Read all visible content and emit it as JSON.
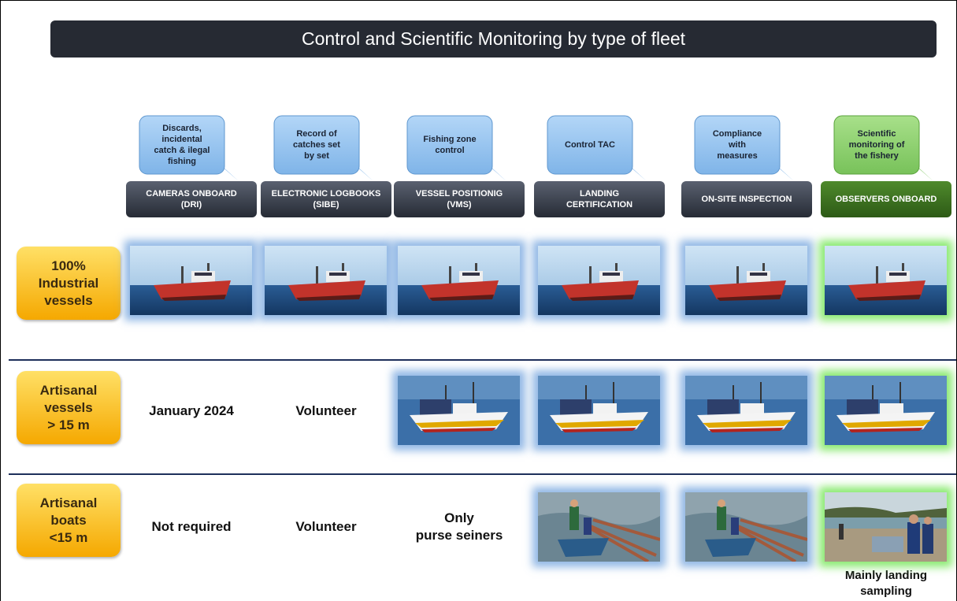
{
  "title": "Control and Scientific Monitoring by type of fleet",
  "columns": [
    {
      "callout": [
        "Discards,",
        "incidental",
        "catch & ilegal",
        "fishing"
      ],
      "header": [
        "CAMERAS ONBOARD",
        "(DRI)"
      ]
    },
    {
      "callout": [
        "Record of",
        "catches set",
        "by set"
      ],
      "header": [
        "ELECTRONIC LOGBOOKS",
        "(SIBE)"
      ]
    },
    {
      "callout": [
        "Fishing zone",
        "control"
      ],
      "header": [
        "VESSEL POSITIONIG",
        "(VMS)"
      ]
    },
    {
      "callout": [
        "Control TAC"
      ],
      "header": [
        "LANDING",
        "CERTIFICATION"
      ]
    },
    {
      "callout": [
        "Compliance",
        "with",
        "measures"
      ],
      "header": [
        "ON-SITE INSPECTION"
      ]
    },
    {
      "callout": [
        "Scientific",
        "monitoring of",
        "the fishery"
      ],
      "header": [
        "OBSERVERS ONBOARD"
      ]
    }
  ],
  "rows": [
    {
      "label": [
        "100%",
        "Industrial",
        "vessels"
      ]
    },
    {
      "label": [
        "Artisanal",
        "vessels",
        "> 15 m"
      ],
      "notes": [
        [
          "January 2024"
        ],
        [
          "Volunteer"
        ]
      ]
    },
    {
      "label": [
        "Artisanal",
        "boats",
        "<15  m"
      ],
      "notes": [
        [
          "Not required"
        ],
        [
          "Volunteer"
        ],
        [
          "Only",
          "purse seiners"
        ]
      ],
      "caption": [
        "Mainly landing",
        "sampling"
      ]
    }
  ]
}
